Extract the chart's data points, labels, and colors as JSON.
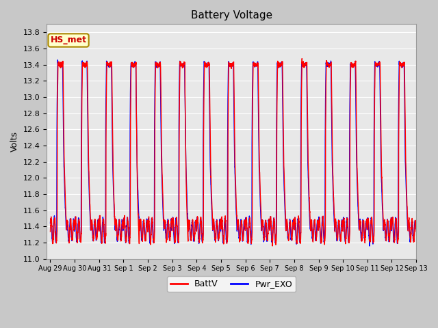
{
  "title": "Battery Voltage",
  "ylabel": "Volts",
  "ylim": [
    11.0,
    13.9
  ],
  "yticks": [
    11.0,
    11.2,
    11.4,
    11.6,
    11.8,
    12.0,
    12.2,
    12.4,
    12.6,
    12.8,
    13.0,
    13.2,
    13.4,
    13.6,
    13.8
  ],
  "legend_labels": [
    "BattV",
    "Pwr_EXO"
  ],
  "line_color_batt": "red",
  "line_color_pwr": "blue",
  "linewidth": 1.0,
  "annotation_text": "HS_met",
  "annotation_color": "#cc0000",
  "annotation_bg": "#ffffcc",
  "annotation_border": "#aa8800",
  "fig_bg": "#c8c8c8",
  "plot_bg": "#e8e8e8",
  "grid_color": "white",
  "xtick_labels": [
    "Aug 29",
    "Aug 30",
    "Aug 31",
    "Sep 1",
    "Sep 2",
    "Sep 3",
    "Sep 4",
    "Sep 5",
    "Sep 6",
    "Sep 7",
    "Sep 8",
    "Sep 9",
    "Sep 10",
    "Sep 11",
    "Sep 12",
    "Sep 13"
  ]
}
